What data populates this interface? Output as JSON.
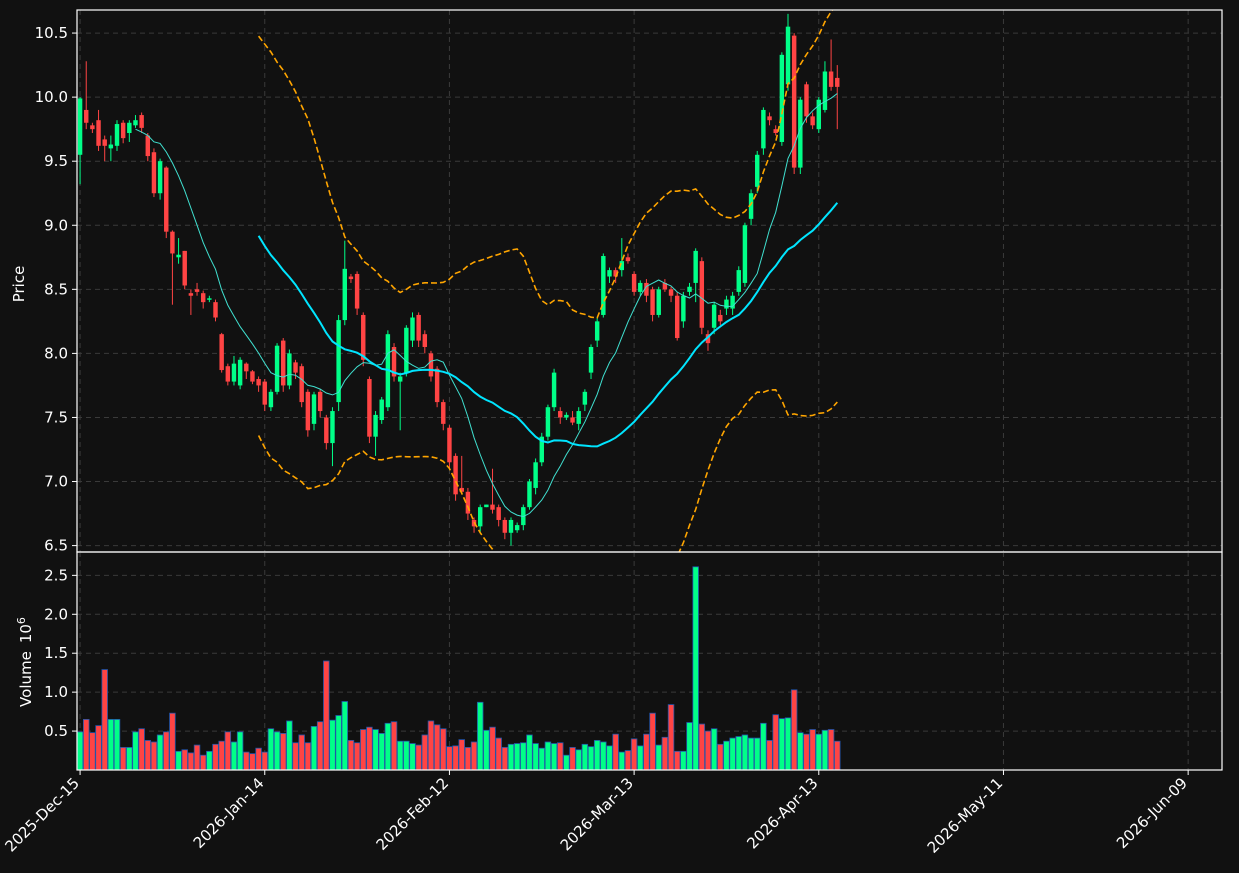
{
  "chart_data": {
    "type": "candlestick",
    "title": "",
    "ylabel": "Price",
    "volume_ylabel": "Volume",
    "volume_exponent": "10",
    "volume_exponent_power": "6",
    "volume_scale": 1000000,
    "ylim": [
      6.45,
      10.68
    ],
    "volume_ylim": [
      0,
      2.8
    ],
    "y_ticks": [
      6.5,
      7.0,
      7.5,
      8.0,
      8.5,
      9.0,
      9.5,
      10.0,
      10.5
    ],
    "y_tick_labels": [
      "6.5",
      "7.0",
      "7.5",
      "8.0",
      "8.5",
      "9.0",
      "9.5",
      "10.0",
      "10.5"
    ],
    "volume_ticks": [
      0.5,
      1.0,
      1.5,
      2.0,
      2.5
    ],
    "volume_tick_labels": [
      "0.5",
      "1.0",
      "1.5",
      "2.0",
      "2.5"
    ],
    "x_ticks": [
      {
        "index": 0,
        "label": "2025-Dec-15"
      },
      {
        "index": 30,
        "label": "2026-Jan-14"
      },
      {
        "index": 60,
        "label": "2026-Feb-12"
      },
      {
        "index": 90,
        "label": "2026-Mar-13"
      },
      {
        "index": 120,
        "label": "2026-Apr-13"
      },
      {
        "index": 150,
        "label": "2026-May-11"
      },
      {
        "index": 180,
        "label": "2026-Jun-09"
      }
    ],
    "x_range": [
      -0.5,
      185.5
    ],
    "grid": true,
    "colors": {
      "background": "#111111",
      "up": "#00ff88",
      "down": "#ff4444",
      "volume_edge": "#2255aa",
      "ma_fast": "#40e0d0",
      "ma_slow": "#00e5ff",
      "band": "#ffa500",
      "grid": "#3a3a3a",
      "frame": "#ffffff",
      "text": "#ffffff"
    },
    "overlays": [
      {
        "kind": "moving-average",
        "window": 10,
        "color": "#40e0d0"
      },
      {
        "kind": "moving-average",
        "window": 30,
        "color": "#00e5ff"
      },
      {
        "kind": "bollinger-band",
        "window": 30,
        "color": "#ffa500"
      }
    ],
    "ohlcv": [
      [
        9.55,
        9.99,
        9.32,
        10.0,
        0.49
      ],
      [
        9.9,
        9.8,
        9.75,
        10.28,
        0.65
      ],
      [
        9.78,
        9.75,
        9.72,
        9.8,
        0.48
      ],
      [
        9.82,
        9.62,
        9.58,
        9.9,
        0.57
      ],
      [
        9.67,
        9.62,
        9.5,
        9.7,
        1.29
      ],
      [
        9.6,
        9.63,
        9.5,
        9.7,
        0.65
      ],
      [
        9.62,
        9.79,
        9.58,
        9.82,
        0.65
      ],
      [
        9.8,
        9.68,
        9.64,
        9.82,
        0.29
      ],
      [
        9.72,
        9.8,
        9.65,
        9.82,
        0.29
      ],
      [
        9.78,
        9.82,
        9.76,
        9.86,
        0.49
      ],
      [
        9.86,
        9.76,
        9.72,
        9.88,
        0.53
      ],
      [
        9.7,
        9.54,
        9.5,
        9.72,
        0.38
      ],
      [
        9.57,
        9.25,
        9.22,
        9.6,
        0.36
      ],
      [
        9.25,
        9.5,
        9.2,
        9.52,
        0.45
      ],
      [
        9.45,
        8.95,
        8.9,
        9.46,
        0.49
      ],
      [
        8.95,
        8.78,
        8.38,
        8.96,
        0.73
      ],
      [
        8.75,
        8.77,
        8.7,
        8.9,
        0.24
      ],
      [
        8.8,
        8.53,
        8.5,
        8.8,
        0.26
      ],
      [
        8.47,
        8.45,
        8.3,
        8.5,
        0.22
      ],
      [
        8.5,
        8.48,
        8.45,
        8.55,
        0.32
      ],
      [
        8.47,
        8.4,
        8.35,
        8.49,
        0.19
      ],
      [
        8.42,
        8.43,
        8.4,
        8.45,
        0.24
      ],
      [
        8.4,
        8.28,
        8.25,
        8.42,
        0.33
      ],
      [
        8.15,
        7.87,
        7.85,
        8.16,
        0.37
      ],
      [
        7.9,
        7.78,
        7.75,
        7.92,
        0.49
      ],
      [
        7.78,
        7.92,
        7.75,
        7.98,
        0.36
      ],
      [
        7.75,
        7.95,
        7.72,
        7.97,
        0.49
      ],
      [
        7.92,
        7.86,
        7.8,
        7.93,
        0.23
      ],
      [
        7.86,
        7.78,
        7.76,
        7.87,
        0.21
      ],
      [
        7.8,
        7.75,
        7.7,
        7.82,
        0.28
      ],
      [
        7.78,
        7.6,
        7.55,
        7.8,
        0.23
      ],
      [
        7.58,
        7.7,
        7.55,
        7.72,
        0.53
      ],
      [
        7.7,
        8.06,
        7.68,
        8.08,
        0.49
      ],
      [
        8.1,
        7.75,
        7.7,
        8.12,
        0.47
      ],
      [
        7.75,
        8.0,
        7.72,
        8.03,
        0.63
      ],
      [
        7.93,
        7.85,
        7.8,
        7.95,
        0.35
      ],
      [
        7.9,
        7.62,
        7.58,
        7.92,
        0.45
      ],
      [
        7.7,
        7.4,
        7.35,
        7.72,
        0.35
      ],
      [
        7.45,
        7.68,
        7.4,
        7.7,
        0.56
      ],
      [
        7.7,
        7.55,
        7.5,
        7.72,
        0.62
      ],
      [
        7.5,
        7.3,
        7.25,
        7.52,
        1.4
      ],
      [
        7.3,
        7.55,
        7.12,
        7.58,
        0.64
      ],
      [
        7.62,
        8.26,
        7.55,
        8.3,
        0.7
      ],
      [
        8.26,
        8.66,
        8.22,
        8.88,
        0.88
      ],
      [
        8.6,
        8.58,
        8.55,
        8.62,
        0.38
      ],
      [
        8.62,
        8.35,
        8.3,
        8.64,
        0.35
      ],
      [
        8.3,
        7.95,
        7.9,
        8.32,
        0.52
      ],
      [
        7.8,
        7.35,
        7.3,
        7.82,
        0.55
      ],
      [
        7.35,
        7.52,
        7.2,
        7.55,
        0.52
      ],
      [
        7.48,
        7.64,
        7.45,
        7.66,
        0.47
      ],
      [
        7.58,
        8.15,
        7.55,
        8.18,
        0.6
      ],
      [
        8.05,
        7.82,
        7.78,
        8.08,
        0.62
      ],
      [
        7.78,
        7.82,
        7.4,
        7.85,
        0.37
      ],
      [
        7.85,
        8.2,
        7.82,
        8.22,
        0.37
      ],
      [
        8.1,
        8.28,
        8.05,
        8.32,
        0.34
      ],
      [
        8.3,
        8.1,
        8.05,
        8.32,
        0.32
      ],
      [
        8.15,
        8.05,
        8.0,
        8.18,
        0.45
      ],
      [
        8.0,
        7.82,
        7.78,
        8.02,
        0.63
      ],
      [
        7.88,
        7.62,
        7.58,
        7.9,
        0.58
      ],
      [
        7.62,
        7.45,
        7.4,
        7.64,
        0.53
      ],
      [
        7.42,
        7.15,
        7.1,
        7.44,
        0.3
      ],
      [
        7.2,
        6.9,
        6.85,
        7.22,
        0.31
      ],
      [
        6.95,
        6.92,
        6.9,
        7.2,
        0.39
      ],
      [
        6.92,
        6.75,
        6.7,
        6.95,
        0.29
      ],
      [
        6.7,
        6.65,
        6.6,
        6.72,
        0.36
      ],
      [
        6.65,
        6.8,
        6.6,
        6.82,
        0.87
      ],
      [
        6.8,
        6.82,
        7.25,
        6.78,
        0.51
      ],
      [
        6.82,
        6.78,
        6.75,
        7.1,
        0.55
      ],
      [
        6.8,
        6.7,
        6.65,
        6.82,
        0.41
      ],
      [
        6.7,
        6.6,
        6.55,
        6.72,
        0.29
      ],
      [
        6.6,
        6.7,
        6.5,
        6.72,
        0.33
      ],
      [
        6.62,
        6.66,
        6.6,
        6.68,
        0.34
      ],
      [
        6.66,
        6.8,
        6.62,
        6.82,
        0.35
      ],
      [
        6.8,
        7.0,
        6.78,
        7.02,
        0.45
      ],
      [
        6.95,
        7.15,
        6.9,
        7.18,
        0.34
      ],
      [
        7.15,
        7.35,
        7.12,
        7.38,
        0.28
      ],
      [
        7.35,
        7.58,
        7.32,
        7.6,
        0.36
      ],
      [
        7.58,
        7.85,
        7.55,
        7.88,
        0.34
      ],
      [
        7.55,
        7.5,
        7.45,
        7.58,
        0.35
      ],
      [
        7.5,
        7.52,
        7.48,
        7.54,
        0.19
      ],
      [
        7.5,
        7.46,
        7.44,
        7.55,
        0.29
      ],
      [
        7.45,
        7.55,
        7.4,
        7.58,
        0.26
      ],
      [
        7.6,
        7.7,
        7.55,
        7.72,
        0.33
      ],
      [
        7.85,
        8.05,
        7.8,
        8.07,
        0.3
      ],
      [
        8.1,
        8.25,
        8.05,
        8.28,
        0.38
      ],
      [
        8.3,
        8.76,
        8.28,
        8.78,
        0.36
      ],
      [
        8.6,
        8.65,
        8.55,
        8.67,
        0.31
      ],
      [
        8.65,
        8.6,
        8.55,
        8.67,
        0.46
      ],
      [
        8.65,
        8.72,
        8.6,
        8.9,
        0.23
      ],
      [
        8.75,
        8.72,
        8.7,
        8.78,
        0.25
      ],
      [
        8.62,
        8.48,
        8.45,
        8.64,
        0.4
      ],
      [
        8.48,
        8.55,
        8.45,
        8.57,
        0.31
      ],
      [
        8.55,
        8.45,
        8.4,
        8.58,
        0.46
      ],
      [
        8.5,
        8.3,
        8.25,
        8.52,
        0.73
      ],
      [
        8.3,
        8.5,
        8.28,
        8.52,
        0.32
      ],
      [
        8.55,
        8.5,
        8.48,
        8.58,
        0.42
      ],
      [
        8.5,
        8.45,
        8.4,
        8.52,
        0.84
      ],
      [
        8.45,
        8.12,
        8.1,
        8.48,
        0.24
      ],
      [
        8.25,
        8.45,
        8.2,
        8.48,
        0.24
      ],
      [
        8.48,
        8.52,
        8.45,
        8.55,
        0.61
      ],
      [
        8.55,
        8.8,
        8.4,
        8.82,
        2.61
      ],
      [
        8.72,
        8.2,
        8.15,
        8.75,
        0.59
      ],
      [
        8.15,
        8.08,
        8.02,
        8.18,
        0.5
      ],
      [
        8.2,
        8.38,
        8.15,
        8.4,
        0.53
      ],
      [
        8.3,
        8.25,
        8.22,
        8.34,
        0.33
      ],
      [
        8.35,
        8.42,
        8.3,
        8.45,
        0.37
      ],
      [
        8.35,
        8.45,
        8.3,
        8.48,
        0.41
      ],
      [
        8.48,
        8.65,
        8.45,
        8.68,
        0.43
      ],
      [
        8.55,
        9.0,
        8.52,
        9.02,
        0.45
      ],
      [
        9.05,
        9.25,
        9.0,
        9.28,
        0.41
      ],
      [
        9.3,
        9.55,
        9.25,
        9.58,
        0.41
      ],
      [
        9.6,
        9.9,
        9.55,
        9.92,
        0.6
      ],
      [
        9.85,
        9.82,
        9.78,
        9.88,
        0.38
      ],
      [
        9.75,
        9.72,
        9.7,
        9.78,
        0.71
      ],
      [
        9.65,
        10.33,
        9.62,
        10.35,
        0.66
      ],
      [
        10.1,
        10.55,
        10.05,
        10.65,
        0.67
      ],
      [
        10.48,
        9.45,
        9.4,
        10.5,
        1.03
      ],
      [
        9.45,
        9.98,
        9.4,
        10.0,
        0.48
      ],
      [
        10.1,
        9.85,
        9.8,
        10.12,
        0.46
      ],
      [
        9.85,
        9.78,
        9.75,
        9.88,
        0.52
      ],
      [
        9.75,
        9.98,
        9.72,
        10.0,
        0.46
      ],
      [
        9.9,
        10.2,
        9.88,
        10.28,
        0.51
      ],
      [
        10.2,
        10.08,
        10.05,
        10.45,
        0.52
      ],
      [
        10.15,
        10.08,
        9.75,
        10.25,
        0.37
      ]
    ]
  }
}
